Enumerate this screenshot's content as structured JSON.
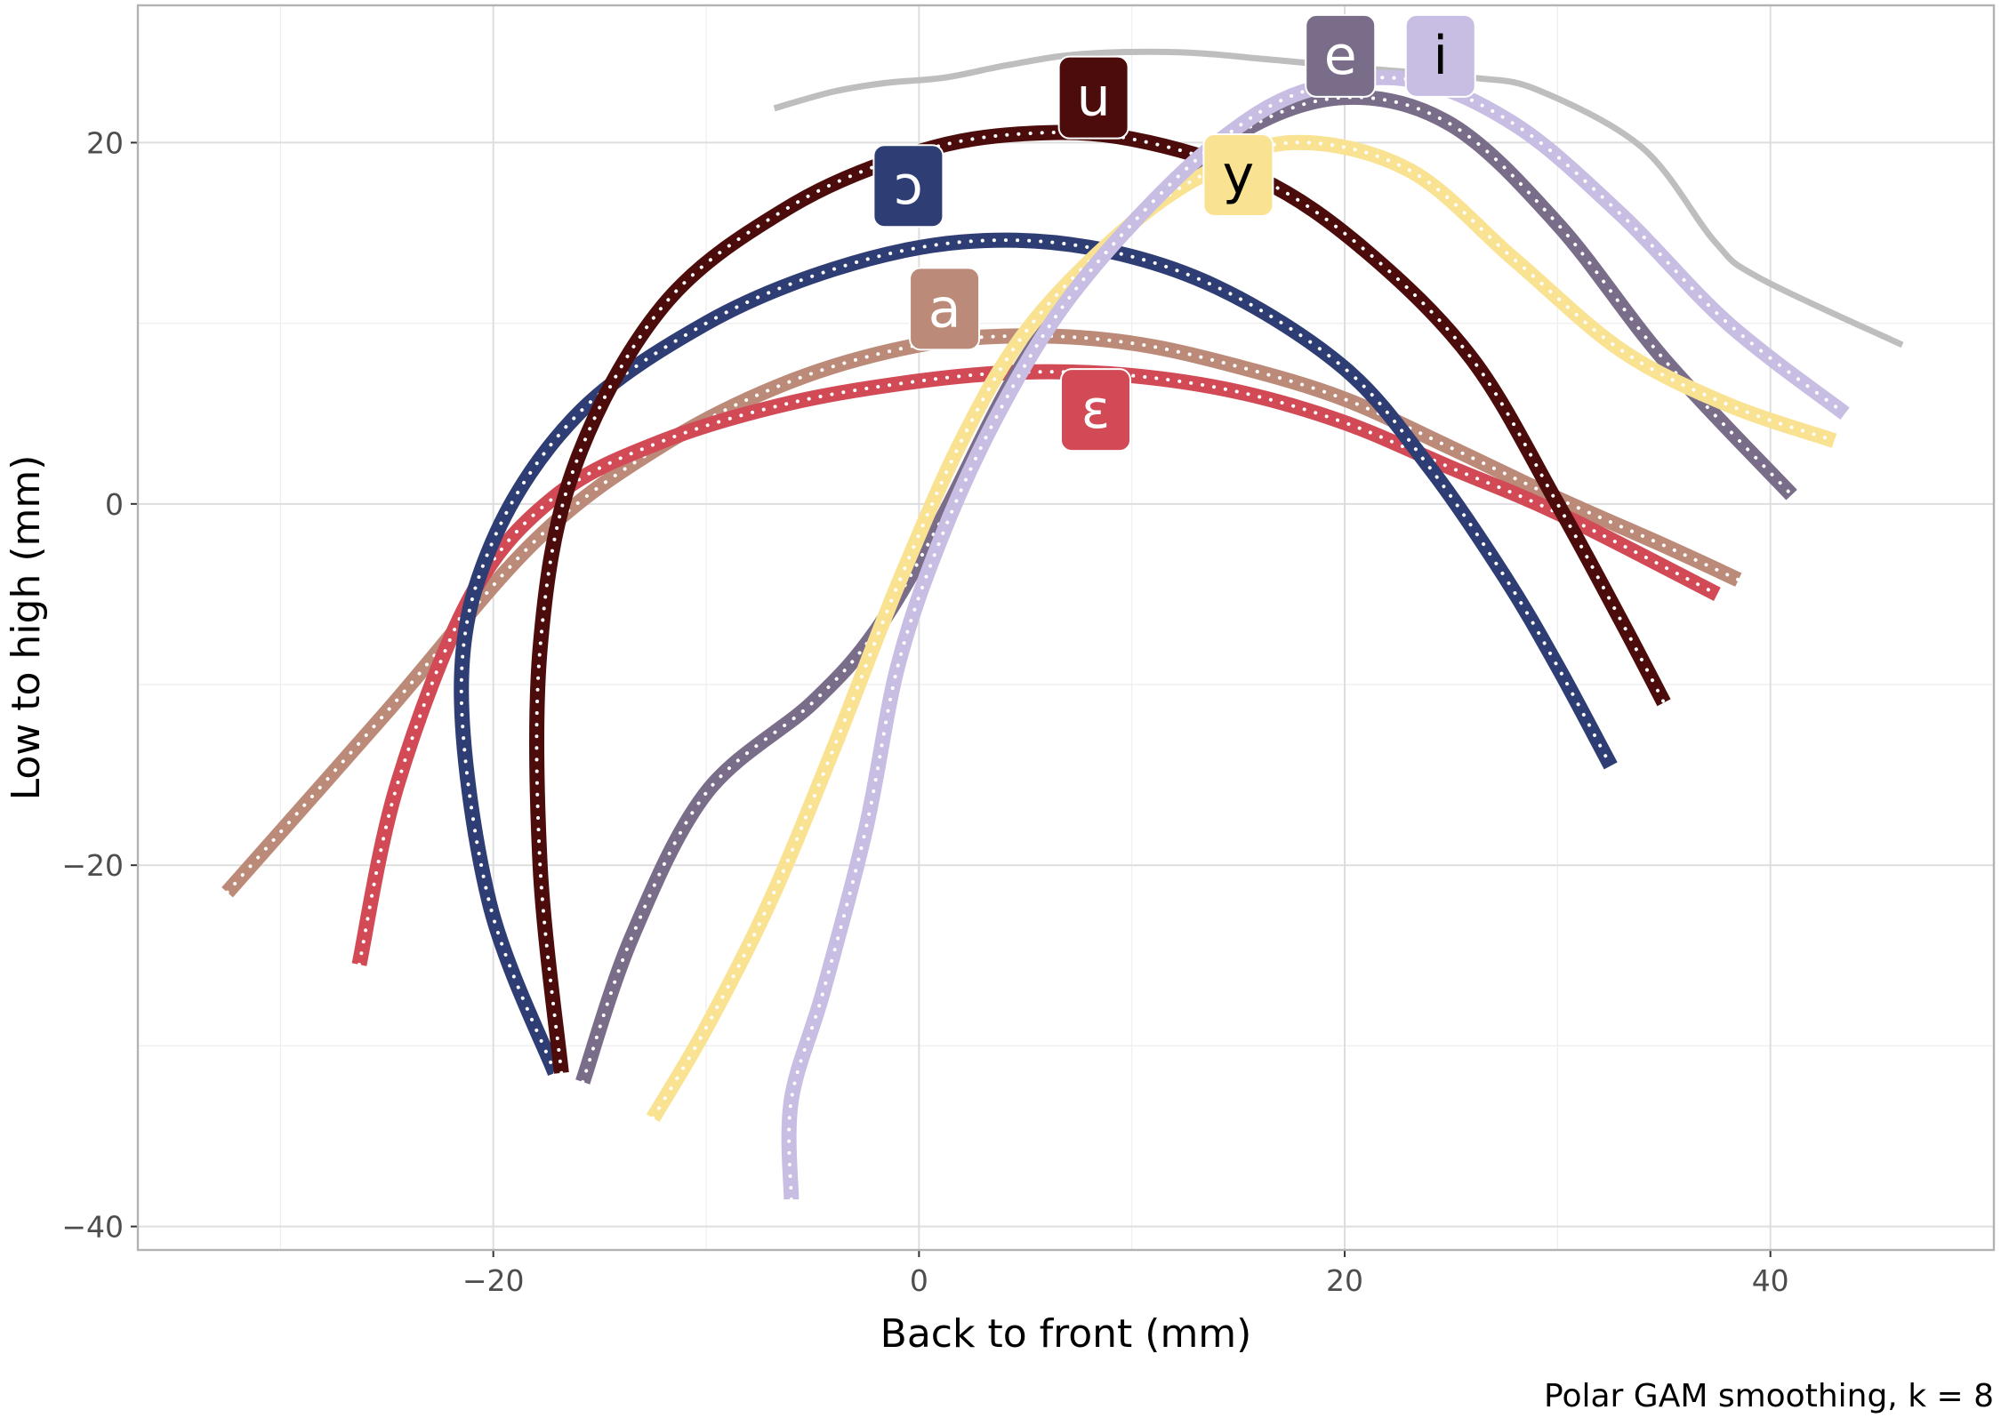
{
  "chart_data": {
    "type": "line",
    "title": "",
    "xlabel": "Back to front (mm)",
    "ylabel": "Low to high (mm)",
    "caption": "Polar GAM smoothing, k = 8",
    "xlim": [
      -36.7,
      50.5
    ],
    "ylim": [
      -41.3,
      27.6
    ],
    "xticks": [
      -20,
      0,
      20,
      40
    ],
    "yticks": [
      -40,
      -20,
      0,
      20
    ],
    "grid": true,
    "legend": "none (direct labels)",
    "reference_line": {
      "color": "#bebebe",
      "x": [
        -6.8,
        -4.1,
        -1.6,
        1.2,
        4.2,
        7.6,
        12.2,
        16.5,
        21.0,
        26.0,
        29.1,
        34.0,
        37.4,
        39.5,
        46.2
      ],
      "y": [
        21.9,
        22.8,
        23.3,
        23.6,
        24.3,
        24.9,
        25.0,
        24.6,
        24.1,
        23.6,
        22.9,
        19.7,
        14.5,
        12.5,
        8.8
      ]
    },
    "series": [
      {
        "name": "a",
        "color": "#bc8a78",
        "label_x": 1.2,
        "label_y": 10.8,
        "x": [
          -32.5,
          -25.0,
          -18.0,
          -12.0,
          -6.0,
          0.0,
          5.0,
          10.0,
          15.0,
          20.0,
          25.0,
          30.0,
          35.0,
          38.5
        ],
        "y": [
          -21.5,
          -11.5,
          -2.0,
          3.3,
          6.8,
          8.8,
          9.3,
          8.9,
          7.6,
          5.8,
          3.1,
          0.3,
          -2.3,
          -4.2
        ]
      },
      {
        "name": "ɛ",
        "color": "#d14a55",
        "label_x": 8.3,
        "label_y": 5.2,
        "x": [
          -26.3,
          -24.5,
          -21.0,
          -17.0,
          -12.0,
          -6.0,
          0.0,
          5.0,
          10.0,
          15.0,
          20.0,
          25.0,
          30.0,
          37.5
        ],
        "y": [
          -25.5,
          -15.5,
          -5.0,
          0.5,
          3.5,
          5.6,
          6.8,
          7.3,
          7.1,
          6.2,
          4.5,
          2.0,
          -0.5,
          -5.0
        ]
      },
      {
        "name": "ɔ",
        "color": "#2e3d73",
        "label_x": -0.5,
        "label_y": 17.6,
        "x": [
          -17.1,
          -20.2,
          -21.5,
          -20.0,
          -16.0,
          -10.0,
          -4.0,
          2.0,
          8.0,
          14.0,
          20.0,
          24.0,
          27.5,
          30.0,
          32.5
        ],
        "y": [
          -31.5,
          -22.0,
          -10.0,
          -2.0,
          5.0,
          10.0,
          13.0,
          14.5,
          14.2,
          12.0,
          7.5,
          2.0,
          -4.0,
          -9.0,
          -14.5
        ]
      },
      {
        "name": "u",
        "color": "#4c0c0c",
        "label_x": 8.2,
        "label_y": 22.5,
        "x": [
          -16.8,
          -17.8,
          -17.8,
          -16.2,
          -12.0,
          -6.0,
          0.0,
          5.0,
          10.0,
          16.0,
          21.0,
          26.0,
          30.0,
          33.0,
          35.0
        ],
        "y": [
          -31.5,
          -20.0,
          -8.0,
          2.0,
          11.0,
          16.5,
          19.5,
          20.5,
          20.2,
          18.0,
          14.0,
          8.0,
          0.0,
          -6.5,
          -11.0
        ]
      },
      {
        "name": "e",
        "color": "#7a6d89",
        "label_x": 19.8,
        "label_y": 24.8,
        "x": [
          -15.8,
          -13.5,
          -10.0,
          -5.0,
          -2.0,
          1.0,
          5.0,
          10.0,
          15.0,
          20.0,
          25.0,
          30.0,
          35.0,
          41.0
        ],
        "y": [
          -32.0,
          -24.0,
          -16.0,
          -11.0,
          -7.0,
          -1.0,
          8.0,
          15.5,
          20.5,
          22.5,
          21.0,
          15.5,
          8.0,
          0.5
        ]
      },
      {
        "name": "y",
        "color": "#f9e392",
        "label_x": 15.0,
        "label_y": 18.2,
        "x": [
          -12.5,
          -10.0,
          -7.0,
          -4.0,
          -1.0,
          2.0,
          5.0,
          9.0,
          13.0,
          17.5,
          23.0,
          28.0,
          33.0,
          38.0,
          43.0
        ],
        "y": [
          -34.0,
          -29.0,
          -22.0,
          -13.5,
          -4.5,
          3.5,
          9.5,
          14.5,
          18.0,
          20.0,
          18.5,
          13.5,
          8.5,
          5.5,
          3.5
        ]
      },
      {
        "name": "i",
        "color": "#c8bde2",
        "label_x": 24.5,
        "label_y": 24.8,
        "x": [
          -6.0,
          -6.0,
          -4.5,
          -2.5,
          -1.0,
          1.0,
          3.5,
          6.5,
          10.0,
          14.0,
          18.0,
          23.0,
          28.0,
          33.0,
          38.0,
          43.5
        ],
        "y": [
          -38.5,
          -33.0,
          -27.0,
          -18.0,
          -9.0,
          -2.0,
          4.5,
          10.5,
          15.5,
          20.0,
          22.8,
          23.5,
          21.0,
          16.0,
          10.0,
          5.0
        ]
      }
    ]
  }
}
